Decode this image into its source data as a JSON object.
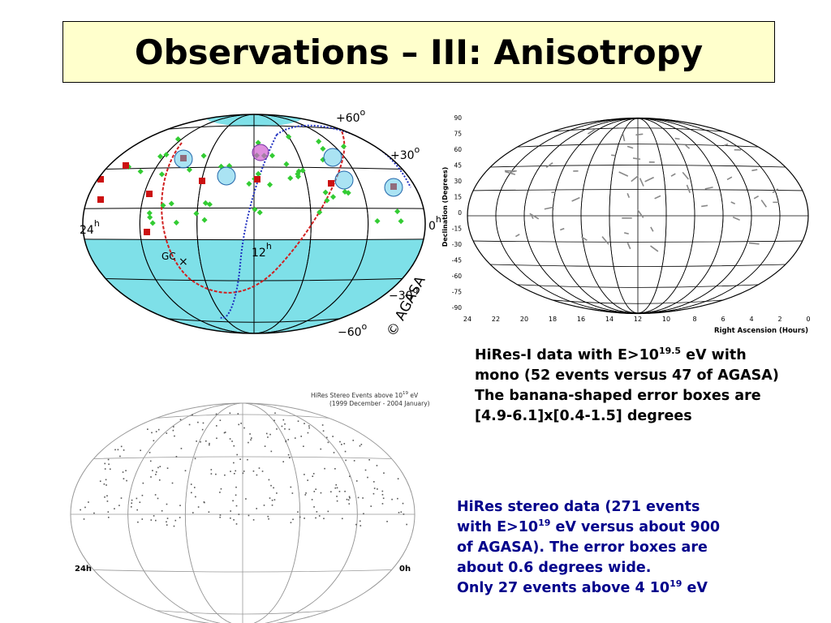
{
  "title": "Observations – III: Anisotropy",
  "agasa_map": {
    "labels": {
      "dec_p60": "+60",
      "dec_p30": "+30",
      "dec_m30": "−30",
      "dec_m60": "−60",
      "ra_24": "24",
      "ra_12": "12",
      "ra_0": "0",
      "hours": "h",
      "deg": "o",
      "gc": "GC",
      "copyright": "© AGASA"
    },
    "colors": {
      "exposure": "#7ee0e8",
      "galactic_plane": "#d02020",
      "supergalactic_plane": "#2030c0",
      "event": "#33cc33",
      "event_high": "#cc1111",
      "doublet_circle": "#55c8e8",
      "triplet": "#d060d0"
    }
  },
  "hires_mono": {
    "ylabel": "Declination (Degrees)",
    "xlabel": "Right Ascension (Hours)",
    "yticks": [
      "90",
      "75",
      "60",
      "45",
      "30",
      "15",
      "0",
      "-15",
      "-30",
      "-45",
      "-60",
      "-75",
      "-90"
    ],
    "xticks": [
      "24",
      "22",
      "20",
      "18",
      "16",
      "14",
      "12",
      "10",
      "8",
      "6",
      "4",
      "2",
      "0"
    ]
  },
  "hires_stereo": {
    "heading_prefix": "HiRes Stereo Events above 10",
    "heading_exp": "19",
    "heading_suffix": " eV",
    "subheading": "(1999 December - 2004 January)",
    "left_label": "24h",
    "right_label": "0h"
  },
  "caption1": {
    "l1_a": "HiRes-I data with E>10",
    "l1_exp": "19.5",
    "l1_b": " eV with",
    "l2": "mono (52 events versus 47 of AGASA)",
    "l3": "The banana-shaped error boxes are",
    "l4": "[4.9-6.1]x[0.4-1.5] degrees"
  },
  "caption2": {
    "l1": "HiRes stereo data (271 events",
    "l2_a": "with E>10",
    "l2_exp": "19",
    "l2_b": " eV versus about 900",
    "l3": "of AGASA). The error boxes are",
    "l4": "about 0.6 degrees wide.",
    "l5_a": "Only 27 events above 4 10",
    "l5_exp": "19",
    "l5_b": " eV"
  }
}
